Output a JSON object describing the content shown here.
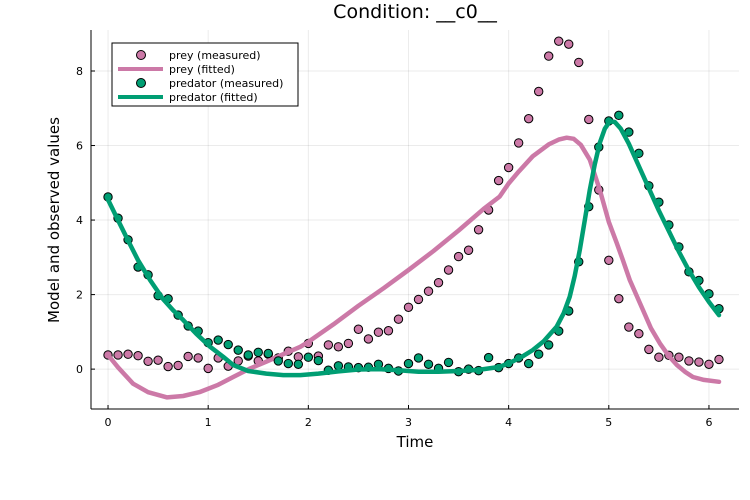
{
  "chart_data": {
    "type": "scatter",
    "title": "Condition: __c0__",
    "xlabel": "Time",
    "ylabel": "Model and observed values",
    "xlim": [
      -0.17,
      6.3
    ],
    "ylim": [
      -1.07,
      9.1
    ],
    "xticks": [
      0,
      1,
      2,
      3,
      4,
      5,
      6
    ],
    "yticks": [
      0,
      2,
      4,
      6,
      8
    ],
    "grid": true,
    "legend_position": "top-left",
    "colors": {
      "prey": "#cc79a7",
      "predator": "#009e73"
    },
    "series": [
      {
        "name": "prey (measured)",
        "kind": "scatter",
        "color_key": "prey",
        "x": [
          0.0,
          0.1,
          0.2,
          0.3,
          0.4,
          0.5,
          0.6,
          0.7,
          0.8,
          0.9,
          1.0,
          1.1,
          1.2,
          1.3,
          1.4,
          1.5,
          1.6,
          1.7,
          1.8,
          1.9,
          2.0,
          2.1,
          2.2,
          2.3,
          2.4,
          2.5,
          2.6,
          2.7,
          2.8,
          2.9,
          3.0,
          3.1,
          3.2,
          3.3,
          3.4,
          3.5,
          3.6,
          3.7,
          3.8,
          3.9,
          4.0,
          4.1,
          4.2,
          4.3,
          4.4,
          4.5,
          4.6,
          4.7,
          4.8,
          4.9,
          5.0,
          5.1,
          5.2,
          5.3,
          5.4,
          5.5,
          5.6,
          5.7,
          5.8,
          5.9,
          6.0,
          6.1
        ],
        "y": [
          0.38,
          0.38,
          0.4,
          0.36,
          0.21,
          0.24,
          0.07,
          0.1,
          0.34,
          0.3,
          0.02,
          0.3,
          0.08,
          0.22,
          0.35,
          0.22,
          0.4,
          0.3,
          0.48,
          0.33,
          0.69,
          0.35,
          0.65,
          0.6,
          0.69,
          1.07,
          0.81,
          0.99,
          1.03,
          1.34,
          1.66,
          1.87,
          2.09,
          2.32,
          2.66,
          3.02,
          3.19,
          3.74,
          4.27,
          5.06,
          5.41,
          6.07,
          6.72,
          7.45,
          8.4,
          8.8,
          8.72,
          8.23,
          6.7,
          4.81,
          2.92,
          1.89,
          1.13,
          0.95,
          0.53,
          0.32,
          0.37,
          0.32,
          0.22,
          0.19,
          0.13,
          0.26
        ]
      },
      {
        "name": "prey (fitted)",
        "kind": "line",
        "color_key": "prey",
        "x": [
          0.0,
          0.1,
          0.25,
          0.4,
          0.59,
          0.75,
          0.92,
          1.1,
          1.25,
          1.42,
          1.58,
          1.75,
          1.92,
          2.0,
          2.25,
          2.5,
          2.75,
          3.0,
          3.25,
          3.5,
          3.75,
          3.91,
          4.0,
          4.1,
          4.24,
          4.4,
          4.5,
          4.58,
          4.65,
          4.72,
          4.81,
          4.91,
          5.0,
          5.08,
          5.14,
          5.21,
          5.34,
          5.42,
          5.51,
          5.6,
          5.68,
          5.76,
          5.84,
          5.95,
          6.1
        ],
        "y": [
          0.38,
          0.05,
          -0.39,
          -0.62,
          -0.76,
          -0.72,
          -0.61,
          -0.42,
          -0.21,
          0.02,
          0.2,
          0.4,
          0.6,
          0.73,
          1.2,
          1.7,
          2.17,
          2.66,
          3.17,
          3.72,
          4.3,
          4.63,
          4.98,
          5.3,
          5.71,
          6.03,
          6.16,
          6.21,
          6.18,
          6.02,
          5.62,
          4.81,
          3.95,
          3.38,
          2.93,
          2.39,
          1.59,
          1.1,
          0.69,
          0.35,
          0.11,
          -0.07,
          -0.21,
          -0.29,
          -0.34
        ]
      },
      {
        "name": "predator (measured)",
        "kind": "scatter",
        "color_key": "predator",
        "x": [
          0.0,
          0.1,
          0.2,
          0.3,
          0.4,
          0.5,
          0.6,
          0.7,
          0.8,
          0.9,
          1.0,
          1.1,
          1.2,
          1.3,
          1.4,
          1.5,
          1.6,
          1.7,
          1.8,
          1.9,
          2.0,
          2.1,
          2.2,
          2.3,
          2.4,
          2.5,
          2.6,
          2.7,
          2.8,
          2.9,
          3.0,
          3.1,
          3.2,
          3.3,
          3.4,
          3.5,
          3.6,
          3.7,
          3.8,
          3.9,
          4.0,
          4.1,
          4.2,
          4.3,
          4.4,
          4.5,
          4.6,
          4.7,
          4.8,
          4.9,
          5.0,
          5.1,
          5.2,
          5.3,
          5.4,
          5.5,
          5.6,
          5.7,
          5.8,
          5.9,
          6.0,
          6.1
        ],
        "y": [
          4.62,
          4.05,
          3.47,
          2.74,
          2.53,
          1.97,
          1.89,
          1.45,
          1.16,
          1.02,
          0.71,
          0.78,
          0.66,
          0.51,
          0.38,
          0.45,
          0.42,
          0.22,
          0.15,
          0.13,
          0.32,
          0.23,
          -0.03,
          0.09,
          0.06,
          0.04,
          0.05,
          0.13,
          0.02,
          -0.05,
          0.15,
          0.3,
          0.13,
          0.02,
          0.18,
          -0.07,
          0.0,
          -0.04,
          0.31,
          0.04,
          0.15,
          0.3,
          0.15,
          0.4,
          0.65,
          1.02,
          1.56,
          2.88,
          4.36,
          5.96,
          6.66,
          6.81,
          6.36,
          5.79,
          4.92,
          4.48,
          3.87,
          3.28,
          2.61,
          2.38,
          2.02,
          1.62
        ]
      },
      {
        "name": "predator (fitted)",
        "kind": "line",
        "color_key": "predator",
        "x": [
          0.0,
          0.1,
          0.2,
          0.3,
          0.42,
          0.55,
          0.65,
          0.75,
          0.88,
          1.02,
          1.15,
          1.25,
          1.4,
          1.58,
          1.75,
          1.92,
          2.1,
          2.3,
          2.5,
          2.7,
          2.9,
          3.1,
          3.3,
          3.5,
          3.7,
          3.91,
          4.05,
          4.15,
          4.24,
          4.35,
          4.48,
          4.55,
          4.61,
          4.66,
          4.71,
          4.76,
          4.81,
          4.86,
          4.91,
          4.96,
          5.01,
          5.06,
          5.12,
          5.2,
          5.3,
          5.4,
          5.5,
          5.6,
          5.7,
          5.8,
          5.9,
          6.0,
          6.1
        ],
        "y": [
          4.55,
          4.0,
          3.45,
          2.92,
          2.39,
          1.88,
          1.58,
          1.32,
          0.95,
          0.6,
          0.33,
          0.11,
          -0.05,
          -0.12,
          -0.16,
          -0.16,
          -0.12,
          -0.06,
          -0.01,
          0.0,
          -0.03,
          -0.07,
          -0.07,
          -0.05,
          -0.02,
          0.06,
          0.22,
          0.36,
          0.51,
          0.75,
          1.14,
          1.5,
          1.94,
          2.5,
          3.2,
          4.0,
          4.81,
          5.5,
          6.07,
          6.45,
          6.65,
          6.63,
          6.45,
          6.05,
          5.45,
          4.85,
          4.25,
          3.7,
          3.15,
          2.65,
          2.2,
          1.8,
          1.45
        ]
      }
    ]
  }
}
